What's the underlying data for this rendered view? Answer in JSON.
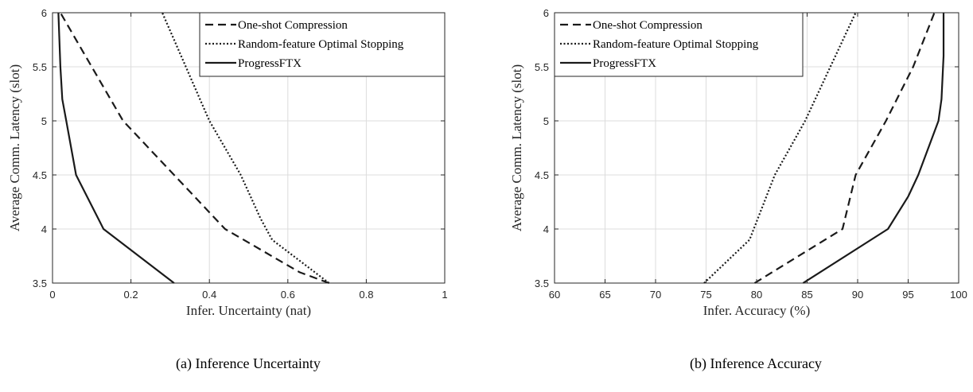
{
  "chart_data": [
    {
      "type": "line",
      "caption": "(a) Inference Uncertainty",
      "xlabel": "Infer. Uncertainty (nat)",
      "ylabel": "Average Comm. Latency (slot)",
      "xlim": [
        0,
        1
      ],
      "ylim": [
        3.5,
        6
      ],
      "xticks": [
        0,
        0.2,
        0.4,
        0.6,
        0.8,
        1
      ],
      "yticks": [
        3.5,
        4,
        4.5,
        5,
        5.5,
        6
      ],
      "grid": true,
      "legend_position": "top-right",
      "series": [
        {
          "name": "One-shot Compression",
          "style": "dashed",
          "x": [
            0.705,
            0.63,
            0.44,
            0.18,
            0.1,
            0.02
          ],
          "y": [
            3.5,
            3.6,
            4.0,
            5.0,
            5.5,
            6.0
          ]
        },
        {
          "name": "Random-feature Optimal Stopping",
          "style": "dotted",
          "x": [
            0.705,
            0.56,
            0.53,
            0.48,
            0.4,
            0.28
          ],
          "y": [
            3.5,
            3.9,
            4.1,
            4.5,
            5.0,
            6.0
          ]
        },
        {
          "name": "ProgressFTX",
          "style": "solid",
          "x": [
            0.31,
            0.13,
            0.06,
            0.035,
            0.025,
            0.02,
            0.015
          ],
          "y": [
            3.5,
            4.0,
            4.5,
            5.0,
            5.2,
            5.5,
            6.0
          ]
        }
      ]
    },
    {
      "type": "line",
      "caption": "(b) Inference Accuracy",
      "xlabel": "Infer. Accuracy (%)",
      "ylabel": "Average Comm. Latency (slot)",
      "xlim": [
        60,
        100
      ],
      "ylim": [
        3.5,
        6
      ],
      "xticks": [
        60,
        65,
        70,
        75,
        80,
        85,
        90,
        95,
        100
      ],
      "yticks": [
        3.5,
        4,
        4.5,
        5,
        5.5,
        6
      ],
      "grid": true,
      "legend_position": "top-left",
      "series": [
        {
          "name": "One-shot Compression",
          "style": "dashed",
          "x": [
            79.8,
            88.5,
            89.8,
            92.8,
            95.5,
            97.6
          ],
          "y": [
            3.5,
            4.0,
            4.5,
            5.0,
            5.5,
            6.0
          ]
        },
        {
          "name": "Random-feature Optimal Stopping",
          "style": "dotted",
          "x": [
            74.8,
            79.3,
            81.8,
            84.8,
            87.3,
            89.8
          ],
          "y": [
            3.5,
            3.9,
            4.5,
            5.0,
            5.5,
            6.0
          ]
        },
        {
          "name": "ProgressFTX",
          "style": "solid",
          "x": [
            84.6,
            93.0,
            95.0,
            96.0,
            98.0,
            98.3,
            98.5,
            98.5
          ],
          "y": [
            3.5,
            4.0,
            4.3,
            4.5,
            5.0,
            5.2,
            5.6,
            6.0
          ]
        }
      ]
    }
  ]
}
